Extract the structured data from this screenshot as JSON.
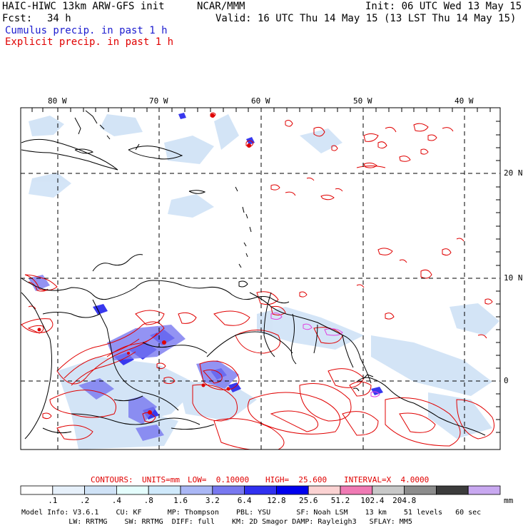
{
  "header": {
    "title_left": "HAIC-HIWC 13km ARW-GFS init",
    "title_center": "NCAR/MMM",
    "init_text": "Init: 06 UTC Wed 13 May 15",
    "fcst_label": "Fcst:",
    "fcst_value": "34 h",
    "valid_text": "Valid: 16 UTC Thu 14 May 15 (13 LST Thu 14 May 15)",
    "line_cumulus": "Cumulus precip. in past 1 h",
    "line_explicit": "Explicit precip. in past 1 h",
    "color_cumulus": "#1c1ccf",
    "color_explicit": "#e00000"
  },
  "map": {
    "lon_labels": [
      "80 W",
      "70 W",
      "60 W",
      "50 W",
      "40 W"
    ],
    "lat_labels": [
      "20 N",
      "10 N",
      "0"
    ]
  },
  "contours": {
    "label": "CONTOURS:",
    "units": "UNITS=mm",
    "low": "LOW=  0.10000",
    "high": "HIGH=  25.600",
    "interval": "INTERVAL=X  4.0000"
  },
  "colorbar": {
    "unit": "mm",
    "ticks": [
      ".1",
      ".2",
      ".4",
      ".8",
      "1.6",
      "3.2",
      "6.4",
      "12.8",
      "25.6",
      "51.2",
      "102.4",
      "204.8"
    ],
    "colors": [
      "#ffffff",
      "#e6f0fa",
      "#cfe2f6",
      "#e4fdfc",
      "#cfe9fb",
      "#aab7f5",
      "#7878f0",
      "#3030f0",
      "#0000ee",
      "#fbd2d2",
      "#f07ab4",
      "#c8c8c8",
      "#8c8c8c",
      "#3c3c3c",
      "#c8a8f0"
    ]
  },
  "model_info": {
    "line1": "Model Info: V3.6.1    CU: KF      MP: Thompson    PBL: YSU      SF: Noah LSM    13 km    51 levels   60 sec",
    "line2": "           LW: RRTMG    SW: RRTMG  DIFF: full    KM: 2D Smagor DAMP: Rayleigh3   SFLAY: MM5"
  }
}
